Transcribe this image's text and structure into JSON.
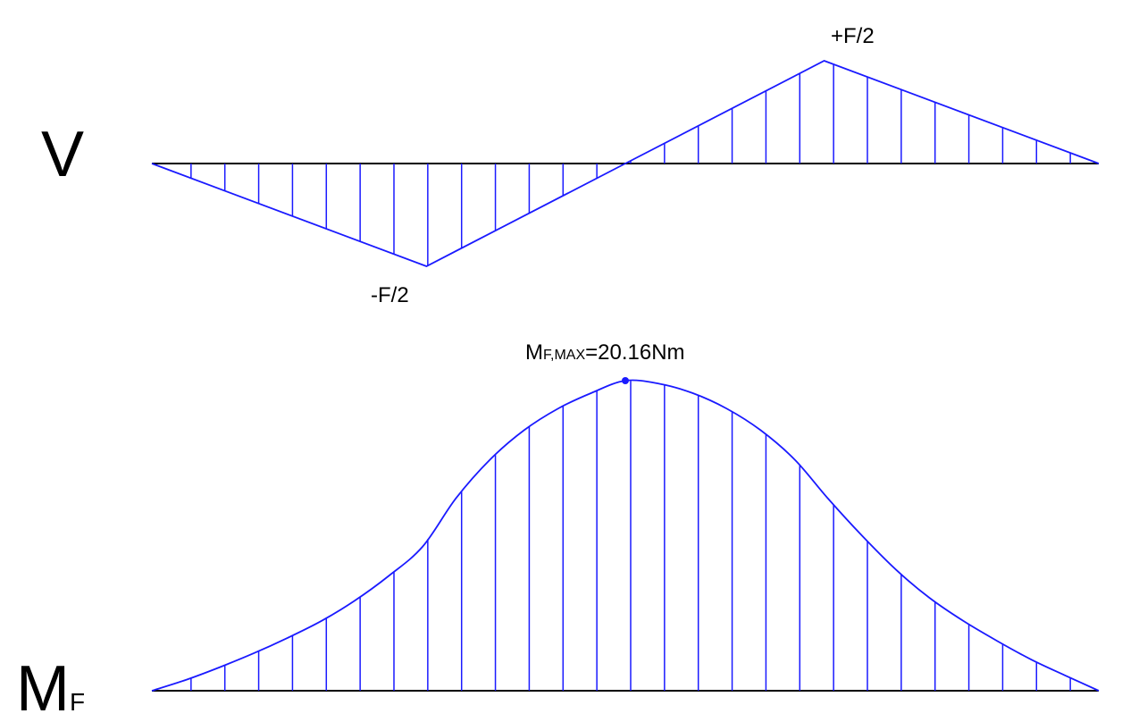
{
  "labels": {
    "shear_symbol": "V",
    "shear_peak_positive": "+F/2",
    "shear_peak_negative": "-F/2",
    "moment_symbol_main": "M",
    "moment_symbol_sub": "F",
    "moment_max_main": "M",
    "moment_max_sub": "F,MAX",
    "moment_max_value": "=20.16Nm"
  },
  "colors": {
    "curve": "#1a1aff",
    "baseline": "#000000",
    "text": "#000000"
  },
  "chart_data": [
    {
      "type": "line",
      "name_ref": "labels.shear_symbol",
      "points": [
        {
          "x": 0.0,
          "v": 0.0
        },
        {
          "x": 0.29,
          "v": -1.0
        },
        {
          "x": 0.5,
          "v": 0.0
        },
        {
          "x": 0.71,
          "v": 1.0
        },
        {
          "x": 1.0,
          "v": 0.0
        }
      ],
      "hatched": true
    },
    {
      "type": "area",
      "name_ref": "labels.moment_symbol_main",
      "points": [
        {
          "x": 0.0,
          "m": 0.0
        },
        {
          "x": 0.036,
          "m": 0.035
        },
        {
          "x": 0.071,
          "m": 0.075
        },
        {
          "x": 0.107,
          "m": 0.12
        },
        {
          "x": 0.143,
          "m": 0.17
        },
        {
          "x": 0.179,
          "m": 0.225
        },
        {
          "x": 0.214,
          "m": 0.29
        },
        {
          "x": 0.25,
          "m": 0.37
        },
        {
          "x": 0.286,
          "m": 0.465
        },
        {
          "x": 0.321,
          "m": 0.62
        },
        {
          "x": 0.357,
          "m": 0.745
        },
        {
          "x": 0.393,
          "m": 0.84
        },
        {
          "x": 0.429,
          "m": 0.91
        },
        {
          "x": 0.464,
          "m": 0.96
        },
        {
          "x": 0.5,
          "m": 1.0
        },
        {
          "x": 0.536,
          "m": 0.99
        },
        {
          "x": 0.571,
          "m": 0.96
        },
        {
          "x": 0.607,
          "m": 0.91
        },
        {
          "x": 0.643,
          "m": 0.84
        },
        {
          "x": 0.679,
          "m": 0.745
        },
        {
          "x": 0.714,
          "m": 0.62
        },
        {
          "x": 0.75,
          "m": 0.5
        },
        {
          "x": 0.786,
          "m": 0.39
        },
        {
          "x": 0.821,
          "m": 0.3
        },
        {
          "x": 0.857,
          "m": 0.225
        },
        {
          "x": 0.893,
          "m": 0.16
        },
        {
          "x": 0.929,
          "m": 0.1
        },
        {
          "x": 0.964,
          "m": 0.05
        },
        {
          "x": 1.0,
          "m": 0.0
        }
      ],
      "max_value": 20.16,
      "max_unit": "Nm",
      "max_marker": true,
      "hatched": true
    }
  ]
}
